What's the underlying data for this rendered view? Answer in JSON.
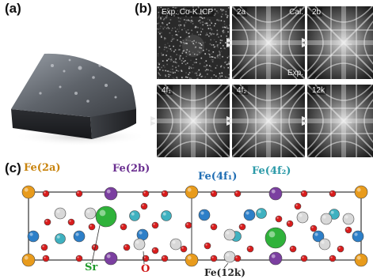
{
  "panels": {
    "a": {
      "label": "(a)"
    },
    "b": {
      "label": "(b)",
      "tiles": [
        {
          "tag": "Exp. Co-K ICP",
          "highlight": false,
          "kind": "noise"
        },
        {
          "tag": "2a",
          "highlight": true,
          "kind": "pattern",
          "cal": "Cal.",
          "exp": "Exp."
        },
        {
          "tag": "2b",
          "highlight": false,
          "kind": "pattern"
        },
        {
          "tag": "4f₁",
          "highlight": true,
          "kind": "pattern"
        },
        {
          "tag": "4f₂",
          "highlight": false,
          "kind": "pattern"
        },
        {
          "tag": "12k",
          "highlight": false,
          "kind": "pattern"
        }
      ]
    },
    "c": {
      "label": "(c)",
      "atom_labels": {
        "fe2a": "Fe(2a)",
        "fe2b": "Fe(2b)",
        "fe4f1": "Fe(4f₁)",
        "fe4f2": "Fe(4f₂)",
        "sr": "Sr",
        "o": "O",
        "fe12k": "Fe(12k)"
      },
      "colors": {
        "fe2a": "#e89b1c",
        "fe2b": "#7b3fa0",
        "fe4f1": "#2d7fc8",
        "fe4f2": "#3fb1c0",
        "fe12k": "#d8d8d8",
        "sr": "#2fb23a",
        "o": "#d91c1c",
        "cell": "#333333"
      }
    }
  }
}
